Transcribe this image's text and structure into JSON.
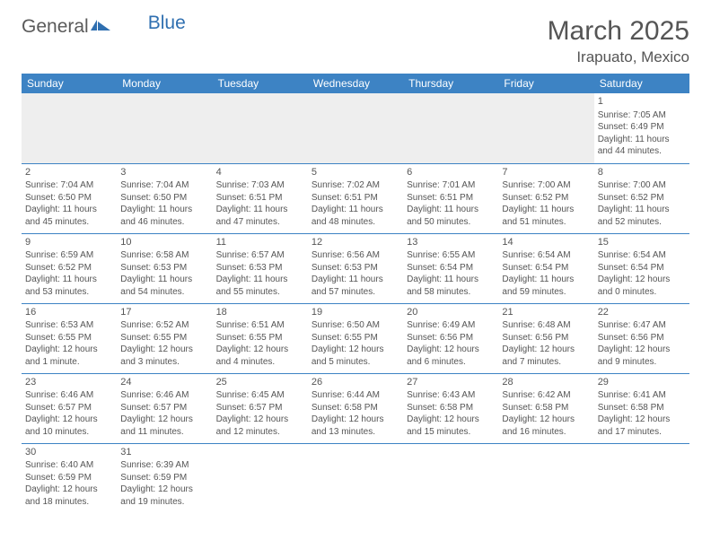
{
  "logo": {
    "part1": "General",
    "part2": "Blue"
  },
  "title": "March 2025",
  "location": "Irapuato, Mexico",
  "colors": {
    "header_bg": "#3d83c4",
    "header_text": "#ffffff",
    "border": "#3d83c4",
    "text": "#555555",
    "blank_bg": "#eeeeee",
    "logo_gray": "#5a5a5a",
    "logo_blue": "#2f6fb0"
  },
  "day_headers": [
    "Sunday",
    "Monday",
    "Tuesday",
    "Wednesday",
    "Thursday",
    "Friday",
    "Saturday"
  ],
  "weeks": [
    [
      null,
      null,
      null,
      null,
      null,
      null,
      {
        "n": "1",
        "sr": "Sunrise: 7:05 AM",
        "ss": "Sunset: 6:49 PM",
        "dl": "Daylight: 11 hours and 44 minutes."
      }
    ],
    [
      {
        "n": "2",
        "sr": "Sunrise: 7:04 AM",
        "ss": "Sunset: 6:50 PM",
        "dl": "Daylight: 11 hours and 45 minutes."
      },
      {
        "n": "3",
        "sr": "Sunrise: 7:04 AM",
        "ss": "Sunset: 6:50 PM",
        "dl": "Daylight: 11 hours and 46 minutes."
      },
      {
        "n": "4",
        "sr": "Sunrise: 7:03 AM",
        "ss": "Sunset: 6:51 PM",
        "dl": "Daylight: 11 hours and 47 minutes."
      },
      {
        "n": "5",
        "sr": "Sunrise: 7:02 AM",
        "ss": "Sunset: 6:51 PM",
        "dl": "Daylight: 11 hours and 48 minutes."
      },
      {
        "n": "6",
        "sr": "Sunrise: 7:01 AM",
        "ss": "Sunset: 6:51 PM",
        "dl": "Daylight: 11 hours and 50 minutes."
      },
      {
        "n": "7",
        "sr": "Sunrise: 7:00 AM",
        "ss": "Sunset: 6:52 PM",
        "dl": "Daylight: 11 hours and 51 minutes."
      },
      {
        "n": "8",
        "sr": "Sunrise: 7:00 AM",
        "ss": "Sunset: 6:52 PM",
        "dl": "Daylight: 11 hours and 52 minutes."
      }
    ],
    [
      {
        "n": "9",
        "sr": "Sunrise: 6:59 AM",
        "ss": "Sunset: 6:52 PM",
        "dl": "Daylight: 11 hours and 53 minutes."
      },
      {
        "n": "10",
        "sr": "Sunrise: 6:58 AM",
        "ss": "Sunset: 6:53 PM",
        "dl": "Daylight: 11 hours and 54 minutes."
      },
      {
        "n": "11",
        "sr": "Sunrise: 6:57 AM",
        "ss": "Sunset: 6:53 PM",
        "dl": "Daylight: 11 hours and 55 minutes."
      },
      {
        "n": "12",
        "sr": "Sunrise: 6:56 AM",
        "ss": "Sunset: 6:53 PM",
        "dl": "Daylight: 11 hours and 57 minutes."
      },
      {
        "n": "13",
        "sr": "Sunrise: 6:55 AM",
        "ss": "Sunset: 6:54 PM",
        "dl": "Daylight: 11 hours and 58 minutes."
      },
      {
        "n": "14",
        "sr": "Sunrise: 6:54 AM",
        "ss": "Sunset: 6:54 PM",
        "dl": "Daylight: 11 hours and 59 minutes."
      },
      {
        "n": "15",
        "sr": "Sunrise: 6:54 AM",
        "ss": "Sunset: 6:54 PM",
        "dl": "Daylight: 12 hours and 0 minutes."
      }
    ],
    [
      {
        "n": "16",
        "sr": "Sunrise: 6:53 AM",
        "ss": "Sunset: 6:55 PM",
        "dl": "Daylight: 12 hours and 1 minute."
      },
      {
        "n": "17",
        "sr": "Sunrise: 6:52 AM",
        "ss": "Sunset: 6:55 PM",
        "dl": "Daylight: 12 hours and 3 minutes."
      },
      {
        "n": "18",
        "sr": "Sunrise: 6:51 AM",
        "ss": "Sunset: 6:55 PM",
        "dl": "Daylight: 12 hours and 4 minutes."
      },
      {
        "n": "19",
        "sr": "Sunrise: 6:50 AM",
        "ss": "Sunset: 6:55 PM",
        "dl": "Daylight: 12 hours and 5 minutes."
      },
      {
        "n": "20",
        "sr": "Sunrise: 6:49 AM",
        "ss": "Sunset: 6:56 PM",
        "dl": "Daylight: 12 hours and 6 minutes."
      },
      {
        "n": "21",
        "sr": "Sunrise: 6:48 AM",
        "ss": "Sunset: 6:56 PM",
        "dl": "Daylight: 12 hours and 7 minutes."
      },
      {
        "n": "22",
        "sr": "Sunrise: 6:47 AM",
        "ss": "Sunset: 6:56 PM",
        "dl": "Daylight: 12 hours and 9 minutes."
      }
    ],
    [
      {
        "n": "23",
        "sr": "Sunrise: 6:46 AM",
        "ss": "Sunset: 6:57 PM",
        "dl": "Daylight: 12 hours and 10 minutes."
      },
      {
        "n": "24",
        "sr": "Sunrise: 6:46 AM",
        "ss": "Sunset: 6:57 PM",
        "dl": "Daylight: 12 hours and 11 minutes."
      },
      {
        "n": "25",
        "sr": "Sunrise: 6:45 AM",
        "ss": "Sunset: 6:57 PM",
        "dl": "Daylight: 12 hours and 12 minutes."
      },
      {
        "n": "26",
        "sr": "Sunrise: 6:44 AM",
        "ss": "Sunset: 6:58 PM",
        "dl": "Daylight: 12 hours and 13 minutes."
      },
      {
        "n": "27",
        "sr": "Sunrise: 6:43 AM",
        "ss": "Sunset: 6:58 PM",
        "dl": "Daylight: 12 hours and 15 minutes."
      },
      {
        "n": "28",
        "sr": "Sunrise: 6:42 AM",
        "ss": "Sunset: 6:58 PM",
        "dl": "Daylight: 12 hours and 16 minutes."
      },
      {
        "n": "29",
        "sr": "Sunrise: 6:41 AM",
        "ss": "Sunset: 6:58 PM",
        "dl": "Daylight: 12 hours and 17 minutes."
      }
    ],
    [
      {
        "n": "30",
        "sr": "Sunrise: 6:40 AM",
        "ss": "Sunset: 6:59 PM",
        "dl": "Daylight: 12 hours and 18 minutes."
      },
      {
        "n": "31",
        "sr": "Sunrise: 6:39 AM",
        "ss": "Sunset: 6:59 PM",
        "dl": "Daylight: 12 hours and 19 minutes."
      },
      null,
      null,
      null,
      null,
      null
    ]
  ]
}
